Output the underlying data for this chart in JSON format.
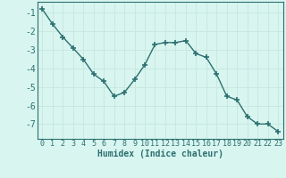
{
  "xlabel": "Humidex (Indice chaleur)",
  "x": [
    0,
    1,
    2,
    3,
    4,
    5,
    6,
    7,
    8,
    9,
    10,
    11,
    12,
    13,
    14,
    15,
    16,
    17,
    18,
    19,
    20,
    21,
    22,
    23
  ],
  "y": [
    -0.8,
    -1.6,
    -2.3,
    -2.9,
    -3.5,
    -4.3,
    -4.7,
    -5.5,
    -5.3,
    -4.6,
    -3.8,
    -2.7,
    -2.6,
    -2.6,
    -2.5,
    -3.2,
    -3.4,
    -4.3,
    -5.5,
    -5.7,
    -6.6,
    -7.0,
    -7.0,
    -7.4
  ],
  "line_color": "#2d7070",
  "marker": "+",
  "marker_size": 4,
  "marker_linewidth": 1.2,
  "linewidth": 1.0,
  "bg_color": "#d8f5f0",
  "grid_major_color": "#c8e8e0",
  "grid_minor_color": "#ddf0eb",
  "ylim": [
    -7.8,
    -0.4
  ],
  "yticks": [
    -7,
    -6,
    -5,
    -4,
    -3,
    -2,
    -1
  ],
  "xlim": [
    -0.5,
    23.5
  ],
  "xticks": [
    0,
    1,
    2,
    3,
    4,
    5,
    6,
    7,
    8,
    9,
    10,
    11,
    12,
    13,
    14,
    15,
    16,
    17,
    18,
    19,
    20,
    21,
    22,
    23
  ],
  "tick_fontsize": 6,
  "xlabel_fontsize": 7,
  "spine_color": "#2d7070"
}
